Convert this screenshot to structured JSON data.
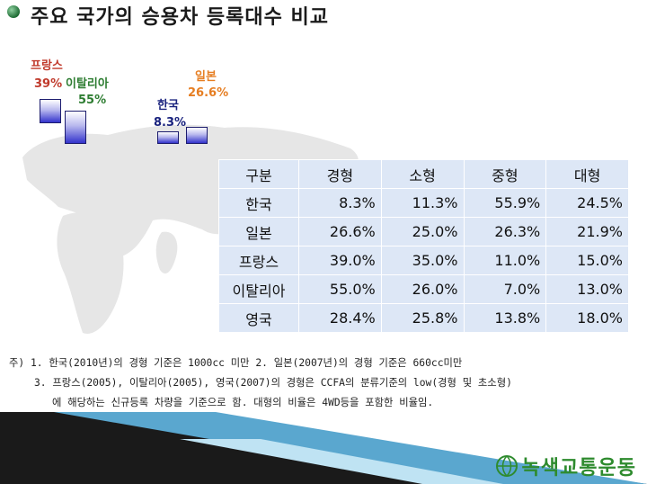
{
  "title": "주요 국가의 승용차 등록대수 비교",
  "chart_data": {
    "type": "bar",
    "categories": [
      "프랑스",
      "이탈리아",
      "한국",
      "일본"
    ],
    "values": [
      39,
      55,
      8.3,
      26.6
    ],
    "labels": [
      "39%",
      "55%",
      "8.3%",
      "26.6%"
    ],
    "colors": {
      "프랑스": "#c0392b",
      "이탈리아": "#2e7d32",
      "한국": "#1a237e",
      "일본": "#e67e22"
    }
  },
  "table": {
    "headers": [
      "구분",
      "경형",
      "소형",
      "중형",
      "대형"
    ],
    "rows": [
      [
        "한국",
        "8.3%",
        "11.3%",
        "55.9%",
        "24.5%"
      ],
      [
        "일본",
        "26.6%",
        "25.0%",
        "26.3%",
        "21.9%"
      ],
      [
        "프랑스",
        "39.0%",
        "35.0%",
        "11.0%",
        "15.0%"
      ],
      [
        "이탈리아",
        "55.0%",
        "26.0%",
        "7.0%",
        "13.0%"
      ],
      [
        "영국",
        "28.4%",
        "25.8%",
        "13.8%",
        "18.0%"
      ]
    ]
  },
  "notes": {
    "line1": "주) 1. 한국(2010년)의 경형 기준은 1000cc 미만   2. 일본(2007년)의 경형 기준은 660cc미만",
    "line2": "3. 프랑스(2005), 이탈리아(2005), 영국(2007)의 경형은 CCFA의 분류기준의 low(경형 및 초소형)",
    "line3": "에 해당하는 신규등록 차량을 기준으로 함. 대형의 비율은 4WD등을 포함한 비율임."
  },
  "logo": {
    "text": "녹색교통운동"
  }
}
